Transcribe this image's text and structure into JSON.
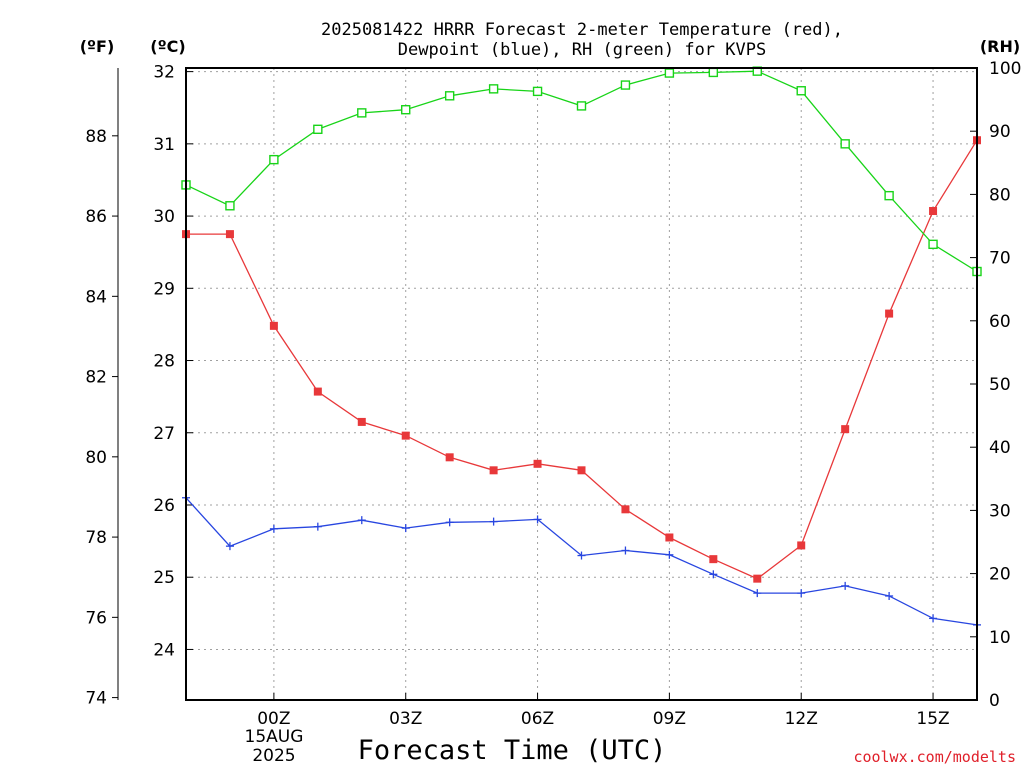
{
  "title_line1": "2025081422 HRRR Forecast 2-meter Temperature (red),",
  "title_line2": "Dewpoint (blue), RH (green) for KVPS",
  "units": {
    "f": "(ºF)",
    "c": "(ºC)",
    "rh": "(RH)"
  },
  "credit": "coolwx.com/modelts",
  "chart_data": {
    "type": "line",
    "title": "2025081422 HRRR Forecast 2-meter Temperature (red), Dewpoint (blue), RH (green) for KVPS",
    "xlabel": "Forecast Time (UTC)",
    "ylabel_left_outer": "(ºF)",
    "ylabel_left": "(ºC)",
    "ylabel_right": "(RH)",
    "date_label": [
      "15AUG",
      "2025"
    ],
    "x_hours": [
      -2,
      -1,
      0,
      1,
      2,
      3,
      4,
      5,
      6,
      7,
      8,
      9,
      10,
      11,
      12,
      13,
      14,
      15,
      16
    ],
    "x_range": [
      -2,
      16
    ],
    "x_ticks": [
      0,
      3,
      6,
      9,
      12,
      15
    ],
    "x_tick_labels": [
      "00Z",
      "03Z",
      "06Z",
      "09Z",
      "12Z",
      "15Z"
    ],
    "ylim_c": [
      23.3,
      32.05
    ],
    "ylim_rh": [
      0,
      100
    ],
    "c_ticks": [
      24,
      25,
      26,
      27,
      28,
      29,
      30,
      31,
      32
    ],
    "f_ticks": [
      74,
      76,
      78,
      80,
      82,
      84,
      86,
      88
    ],
    "rh_ticks": [
      0,
      10,
      20,
      30,
      40,
      50,
      60,
      70,
      80,
      90,
      100
    ],
    "grid": true,
    "series": [
      {
        "axis": "c",
        "color": "#e8383a",
        "marker": "filled-square",
        "values": [
          29.75,
          29.75,
          28.48,
          27.57,
          27.15,
          26.96,
          26.66,
          26.48,
          26.57,
          26.48,
          25.94,
          25.55,
          25.25,
          24.98,
          25.44,
          27.05,
          28.65,
          30.07,
          31.05
        ]
      },
      {
        "axis": "c",
        "color": "#2846e0",
        "marker": "plus",
        "values": [
          26.1,
          25.43,
          25.67,
          25.7,
          25.79,
          25.68,
          25.76,
          25.77,
          25.8,
          25.3,
          25.37,
          25.31,
          25.04,
          24.78,
          24.78,
          24.88,
          24.74,
          24.43,
          24.34
        ]
      },
      {
        "axis": "rh",
        "color": "#18d418",
        "marker": "open-square",
        "values": [
          81.5,
          78.2,
          85.5,
          90.3,
          92.9,
          93.4,
          95.6,
          96.7,
          96.3,
          94.0,
          97.3,
          99.2,
          99.3,
          99.5,
          96.4,
          88.0,
          79.8,
          72.1,
          67.8
        ]
      }
    ]
  }
}
